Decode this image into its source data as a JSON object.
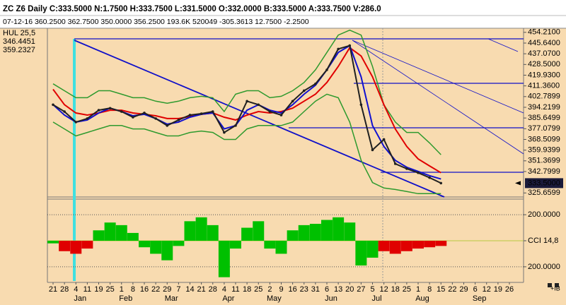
{
  "header": {
    "line1": "ZC  Z6  Daily  C:333.5000  N:1.7500  H:333.7500  L:331.5000  O:332.0000  B:333.5000  A:333.7500  V:286.0",
    "line2": "07-12-16  360.2500  362.7500  350.0000  356.2500  193.6K  520049  -305.3613  12.7500  -2.2500"
  },
  "indicator_labels": [
    {
      "text": "HUL  25,5",
      "color": "#000000"
    },
    {
      "text": "346.4451",
      "color": "#000000"
    },
    {
      "text": "359.2327",
      "color": "#e00000"
    }
  ],
  "footer": "+IB",
  "chart_data": [
    {
      "type": "line",
      "categories": [
        "21",
        "28",
        "4",
        "11",
        "19",
        "25",
        "1",
        "8",
        "16",
        "22",
        "29",
        "7",
        "14",
        "21",
        "28",
        "4",
        "11",
        "18",
        "25",
        "2",
        "9",
        "16",
        "23",
        "31",
        "6",
        "13",
        "20",
        "27",
        "5",
        "12",
        "18",
        "25",
        "1",
        "8",
        "15",
        "22",
        "29",
        "6",
        "12",
        "19",
        "26"
      ],
      "month_labels": [
        null,
        null,
        "Jan",
        null,
        null,
        null,
        "Feb",
        null,
        null,
        null,
        "Mar",
        null,
        null,
        null,
        null,
        "Apr",
        null,
        null,
        null,
        "May",
        null,
        null,
        null,
        null,
        "Jun",
        null,
        null,
        null,
        "Jul",
        null,
        null,
        null,
        "Aug",
        null,
        null,
        null,
        null,
        "Sep",
        null,
        null,
        null
      ],
      "ylim": [
        323,
        457.5
      ],
      "yticks": [
        {
          "value": 454.21,
          "label": "454.2100"
        },
        {
          "value": 445.64,
          "label": "445.6400"
        },
        {
          "value": 437.07,
          "label": "437.0700"
        },
        {
          "value": 428.5,
          "label": "428.5000"
        },
        {
          "value": 419.93,
          "label": "419.9300"
        },
        {
          "value": 411.36,
          "label": "411.3600"
        },
        {
          "value": 402.7899,
          "label": "402.7899"
        },
        {
          "value": 394.2199,
          "label": "394.2199"
        },
        {
          "value": 385.6499,
          "label": "385.6499"
        },
        {
          "value": 377.0799,
          "label": "377.0799"
        },
        {
          "value": 368.5099,
          "label": "368.5099"
        },
        {
          "value": 359.9399,
          "label": "359.9399"
        },
        {
          "value": 351.3699,
          "label": "351.3699"
        },
        {
          "value": 342.7999,
          "label": "342.7999"
        },
        {
          "value": 325.6599,
          "label": "325.6599"
        }
      ],
      "current_price": {
        "value": 333.5,
        "label": "333.5000"
      },
      "series": [
        {
          "color": "#2e9a2e",
          "values": [
            413.0,
            407.5,
            401.9,
            401.9,
            407.5,
            407.5,
            404.7,
            401.9,
            401.9,
            399.1,
            397.5,
            399.1,
            401.9,
            403.0,
            401.9,
            390.8,
            404.7,
            407.5,
            407.5,
            401.9,
            403.0,
            407.5,
            414.1,
            424.2,
            438.1,
            452.0,
            456.0,
            452.0,
            426.9,
            396.3,
            382.4,
            374.1,
            374.1,
            365.7,
            356.3,
            null,
            null,
            null,
            null,
            null,
            null
          ]
        },
        {
          "color": "#2e9a2e",
          "values": [
            382.4,
            376.9,
            371.3,
            374.1,
            376.9,
            379.6,
            379.6,
            376.9,
            376.9,
            374.1,
            371.3,
            371.3,
            374.1,
            375.2,
            374.1,
            368.5,
            368.5,
            376.9,
            379.6,
            379.6,
            379.6,
            382.4,
            390.8,
            399.1,
            404.7,
            401.9,
            382.4,
            351.8,
            334.0,
            329.6,
            328.4,
            326.8,
            325.1,
            325.1,
            325.1,
            null,
            null,
            null,
            null,
            null,
            null
          ]
        },
        {
          "color": "#e00000",
          "values": [
            408.6,
            396.3,
            389.7,
            388.0,
            389.7,
            391.9,
            391.9,
            389.7,
            388.6,
            387.4,
            385.2,
            385.2,
            386.9,
            388.6,
            389.7,
            386.3,
            384.1,
            388.0,
            390.8,
            389.7,
            390.8,
            393.5,
            399.1,
            404.7,
            414.1,
            426.9,
            441.9,
            435.3,
            418.6,
            396.3,
            376.8,
            362.9,
            352.9,
            347.3,
            341.8,
            null,
            null,
            null,
            null,
            null,
            null
          ]
        },
        {
          "color": "#1010d0",
          "values": [
            396.3,
            388.0,
            382.4,
            384.1,
            389.7,
            393.5,
            390.8,
            387.4,
            388.6,
            385.2,
            380.7,
            382.4,
            386.3,
            388.6,
            389.7,
            376.9,
            379.6,
            391.9,
            396.3,
            391.9,
            389.7,
            396.3,
            404.7,
            411.9,
            424.2,
            438.1,
            443.6,
            418.6,
            379.6,
            362.9,
            351.7,
            346.2,
            342.9,
            339.5,
            336.8,
            null,
            null,
            null,
            null,
            null,
            null
          ]
        },
        {
          "color": "#202020",
          "values": [
            396.3,
            390.8,
            382.4,
            385.2,
            391.9,
            393.5,
            390.8,
            386.3,
            389.7,
            385.2,
            379.6,
            384.1,
            388.0,
            389.1,
            390.8,
            374.1,
            379.6,
            399.1,
            396.3,
            390.8,
            388.0,
            399.1,
            407.5,
            413.0,
            424.2,
            440.9,
            443.6,
            396.3,
            360.1,
            368.5,
            349.0,
            345.1,
            341.8,
            337.9,
            333.5,
            null,
            null,
            null,
            null,
            null,
            null
          ]
        }
      ]
    },
    {
      "type": "bar",
      "ylim": [
        -320,
        320
      ],
      "yticks": [
        {
          "value": 200,
          "label": "200.0000"
        },
        {
          "value": 0,
          "label": "CCI  14,8"
        },
        {
          "value": -200,
          "label": "200.0000"
        }
      ],
      "values": [
        -20,
        -80,
        -100,
        -60,
        80,
        140,
        120,
        60,
        -50,
        -100,
        -150,
        -40,
        150,
        180,
        120,
        -280,
        -60,
        100,
        150,
        -60,
        -100,
        80,
        120,
        130,
        160,
        180,
        140,
        -190,
        -130,
        -80,
        -100,
        -80,
        -60,
        -50,
        -40
      ],
      "colors": [
        "#00c000",
        "#e00000",
        "#e00000",
        "#e00000",
        "#00c000",
        "#00c000",
        "#00c000",
        "#00c000",
        "#00c000",
        "#00c000",
        "#00c000",
        "#00c000",
        "#00c000",
        "#00c000",
        "#00c000",
        "#00c000",
        "#00c000",
        "#00c000",
        "#00c000",
        "#00c000",
        "#00c000",
        "#00c000",
        "#00c000",
        "#00c000",
        "#00c000",
        "#00c000",
        "#00c000",
        "#00c000",
        "#00c000",
        "#e00000",
        "#e00000",
        "#e00000",
        "#e00000",
        "#e00000",
        "#e00000"
      ]
    }
  ]
}
